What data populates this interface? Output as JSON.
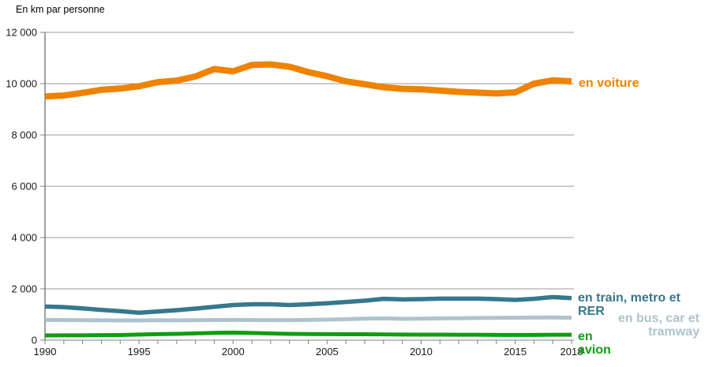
{
  "chart_data": {
    "type": "line",
    "title": "En km par personne",
    "xlabel": "",
    "ylabel": "km par personne",
    "grid": true,
    "legend_position": "right-of-lines",
    "x_range": [
      1990,
      2018
    ],
    "ylim": [
      0,
      12000
    ],
    "x": [
      1990,
      1991,
      1992,
      1993,
      1994,
      1995,
      1996,
      1997,
      1998,
      1999,
      2000,
      2001,
      2002,
      2003,
      2004,
      2005,
      2006,
      2007,
      2008,
      2009,
      2010,
      2011,
      2012,
      2013,
      2014,
      2015,
      2016,
      2017,
      2018
    ],
    "x_tick_labels": [
      {
        "value": 1990,
        "label": "1990"
      },
      {
        "value": 1995,
        "label": "1995"
      },
      {
        "value": 2000,
        "label": "2000"
      },
      {
        "value": 2005,
        "label": "2005"
      },
      {
        "value": 2010,
        "label": "2010"
      },
      {
        "value": 2015,
        "label": "2015"
      },
      {
        "value": 2018,
        "label": "2018"
      }
    ],
    "yticks": [
      {
        "value": 0,
        "label": "0"
      },
      {
        "value": 2000,
        "label": "2 000"
      },
      {
        "value": 4000,
        "label": "4 000"
      },
      {
        "value": 6000,
        "label": "6 000"
      },
      {
        "value": 8000,
        "label": "8 000"
      },
      {
        "value": 10000,
        "label": "10 000"
      },
      {
        "value": 12000,
        "label": "12 000"
      }
    ],
    "series": [
      {
        "id": "voiture",
        "name": "en voiture",
        "color": "#ef8200",
        "stroke_width": 8,
        "values": [
          9500,
          9540,
          9640,
          9760,
          9810,
          9900,
          10060,
          10120,
          10280,
          10570,
          10480,
          10730,
          10750,
          10660,
          10450,
          10290,
          10090,
          9980,
          9860,
          9800,
          9780,
          9730,
          9680,
          9650,
          9620,
          9660,
          10000,
          10130,
          10090
        ]
      },
      {
        "id": "train",
        "name": "en train, metro et RER",
        "color": "#36788c",
        "stroke_width": 5.5,
        "values": [
          1310,
          1290,
          1240,
          1180,
          1130,
          1070,
          1120,
          1170,
          1230,
          1300,
          1370,
          1400,
          1400,
          1370,
          1400,
          1440,
          1490,
          1540,
          1610,
          1590,
          1600,
          1620,
          1620,
          1620,
          1600,
          1570,
          1610,
          1680,
          1640
        ]
      },
      {
        "id": "bus",
        "name": "en bus, car et tramway",
        "color": "#aec3cd",
        "stroke_width": 5,
        "values": [
          790,
          785,
          780,
          775,
          770,
          770,
          775,
          775,
          780,
          785,
          790,
          785,
          780,
          780,
          790,
          800,
          820,
          840,
          850,
          830,
          840,
          850,
          855,
          865,
          870,
          875,
          880,
          885,
          875
        ]
      },
      {
        "id": "avion",
        "name": "en avion",
        "color": "#0f9e0f",
        "stroke_width": 5,
        "values": [
          185,
          190,
          190,
          195,
          200,
          220,
          235,
          245,
          265,
          285,
          295,
          280,
          260,
          245,
          240,
          235,
          230,
          230,
          225,
          220,
          215,
          215,
          210,
          210,
          205,
          205,
          205,
          210,
          210
        ]
      }
    ]
  },
  "labels": {
    "title": "En km par personne",
    "voiture": "en voiture",
    "train": "en train, metro et\nRER",
    "bus": "en bus, car et\ntramway",
    "avion": "en\navion"
  },
  "colors": {
    "voiture": "#ef8200",
    "train": "#36788c",
    "bus": "#aec3cd",
    "avion": "#0f9e0f",
    "gridline": "#9b9b9b",
    "axis": "#808080",
    "tick_text": "#1a1a1a"
  }
}
